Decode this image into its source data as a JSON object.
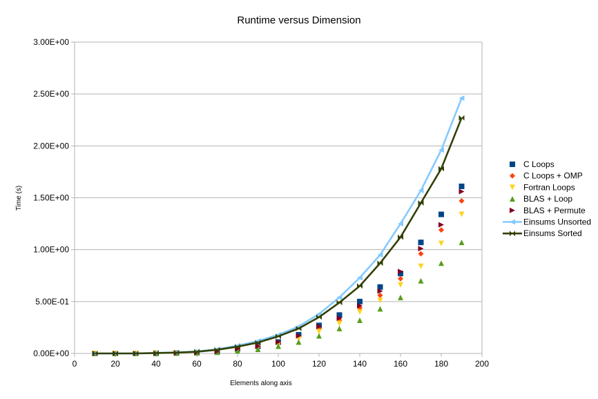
{
  "chart_data": {
    "type": "scatter",
    "title": "Runtime versus Dimension",
    "xlabel": "Elements along axis",
    "ylabel": "Time (s)",
    "xlim": [
      0,
      200
    ],
    "ylim": [
      0,
      3.0
    ],
    "x_ticks": [
      "0",
      "20",
      "40",
      "60",
      "80",
      "100",
      "120",
      "140",
      "160",
      "180",
      "200"
    ],
    "y_ticks": [
      "0.00E+00",
      "5.00E-01",
      "1.00E+00",
      "1.50E+00",
      "2.00E+00",
      "2.50E+00",
      "3.00E+00"
    ],
    "grid": "horizontal",
    "legend_position": "right",
    "x": [
      10,
      20,
      30,
      40,
      50,
      60,
      70,
      80,
      90,
      100,
      110,
      120,
      130,
      140,
      150,
      160,
      170,
      180,
      190
    ],
    "series": [
      {
        "name": "C Loops",
        "marker": "square",
        "color": "#004586",
        "line": false,
        "values": [
          0.0,
          0.0,
          0.0,
          0.002,
          0.005,
          0.01,
          0.02,
          0.045,
          0.07,
          0.11,
          0.18,
          0.27,
          0.37,
          0.5,
          0.64,
          0.77,
          1.07,
          1.34,
          1.61
        ]
      },
      {
        "name": "C Loops + OMP",
        "marker": "diamond",
        "color": "#ff420e",
        "line": false,
        "values": [
          0.0,
          0.0,
          0.0,
          0.002,
          0.004,
          0.009,
          0.018,
          0.04,
          0.065,
          0.1,
          0.16,
          0.24,
          0.32,
          0.44,
          0.56,
          0.72,
          0.96,
          1.19,
          1.47
        ]
      },
      {
        "name": "Fortran Loops",
        "marker": "triangle-down",
        "color": "#ffd320",
        "line": false,
        "values": [
          0.0,
          0.0,
          0.0,
          0.002,
          0.004,
          0.008,
          0.015,
          0.035,
          0.055,
          0.09,
          0.14,
          0.21,
          0.29,
          0.4,
          0.51,
          0.66,
          0.84,
          1.06,
          1.34
        ]
      },
      {
        "name": "BLAS + Loop",
        "marker": "triangle-up",
        "color": "#579d1c",
        "line": false,
        "values": [
          0.0,
          0.0,
          0.0,
          0.001,
          0.003,
          0.006,
          0.012,
          0.025,
          0.04,
          0.07,
          0.11,
          0.17,
          0.24,
          0.32,
          0.43,
          0.54,
          0.7,
          0.87,
          1.07
        ]
      },
      {
        "name": "BLAS + Permute",
        "marker": "triangle-right",
        "color": "#7e0021",
        "line": false,
        "values": [
          0.0,
          0.0,
          0.0,
          0.002,
          0.005,
          0.01,
          0.02,
          0.045,
          0.07,
          0.11,
          0.17,
          0.26,
          0.34,
          0.46,
          0.6,
          0.79,
          1.01,
          1.24,
          1.56
        ]
      },
      {
        "name": "Einsums Unsorted",
        "marker": "triangle-left",
        "color": "#83caff",
        "line": true,
        "values": [
          0.0,
          0.0,
          0.0,
          0.005,
          0.01,
          0.02,
          0.04,
          0.075,
          0.12,
          0.18,
          0.26,
          0.38,
          0.54,
          0.73,
          0.95,
          1.25,
          1.57,
          1.96,
          2.46
        ]
      },
      {
        "name": "Einsums Sorted",
        "marker": "bowtie",
        "color": "#314004",
        "line": true,
        "values": [
          0.0,
          0.0,
          0.0,
          0.004,
          0.008,
          0.016,
          0.035,
          0.065,
          0.105,
          0.165,
          0.24,
          0.35,
          0.49,
          0.65,
          0.87,
          1.12,
          1.45,
          1.78,
          2.27
        ]
      }
    ]
  }
}
